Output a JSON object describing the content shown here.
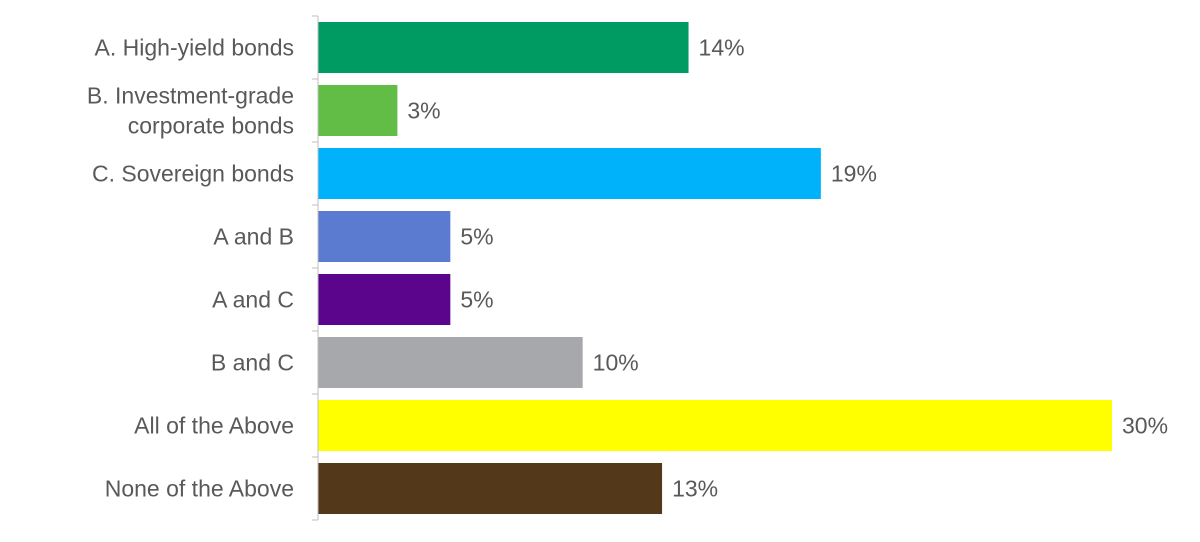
{
  "chart_data": {
    "type": "bar",
    "orientation": "horizontal",
    "title": "",
    "xlabel": "",
    "ylabel": "",
    "categories": [
      [
        "A. High-yield bonds"
      ],
      [
        "B. Investment-grade",
        "corporate bonds"
      ],
      [
        "C. Sovereign bonds"
      ],
      [
        "A and B"
      ],
      [
        "A and C"
      ],
      [
        "B and C"
      ],
      [
        "All of the Above"
      ],
      [
        "None of the Above"
      ]
    ],
    "values": [
      14,
      3,
      19,
      5,
      5,
      10,
      30,
      13
    ],
    "value_labels": [
      "14%",
      "3%",
      "19%",
      "5%",
      "5%",
      "10%",
      "30%",
      "13%"
    ],
    "colors": [
      "#009a63",
      "#62bd47",
      "#00b2fa",
      "#5b7bd0",
      "#5a058b",
      "#a6a8ab",
      "#ffff00",
      "#533919"
    ],
    "xlim": [
      0,
      30
    ],
    "grid": false,
    "legend": "none"
  }
}
